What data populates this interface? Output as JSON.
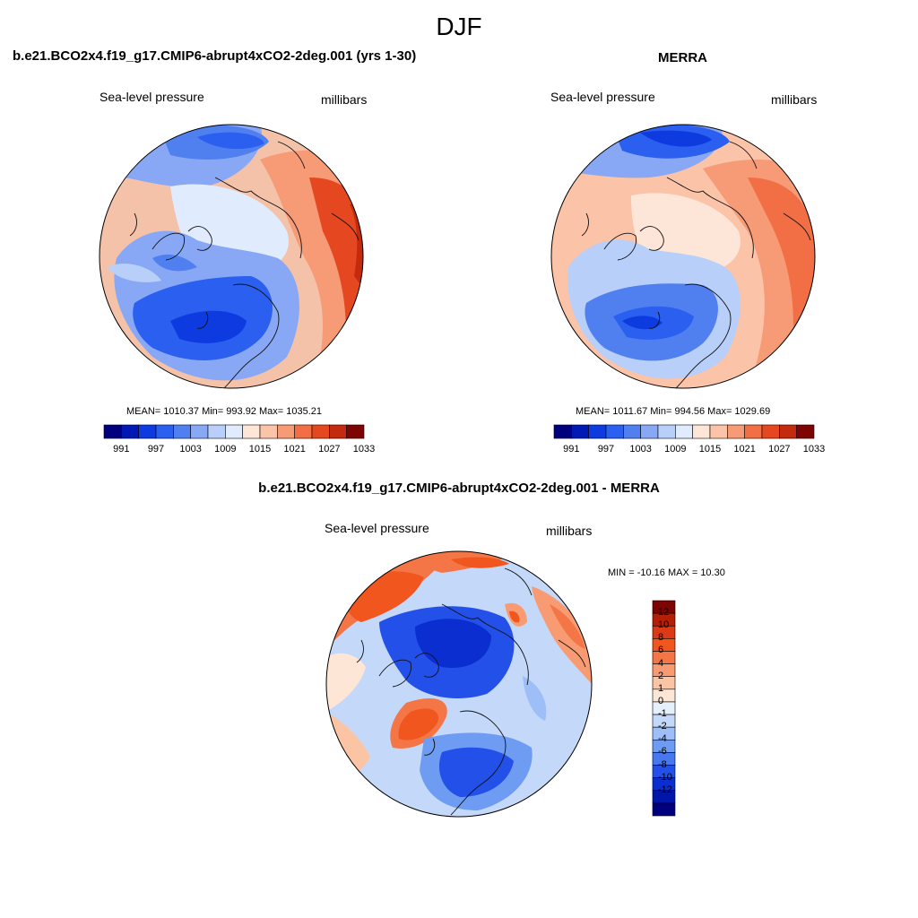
{
  "header": {
    "season": "DJF"
  },
  "panels": [
    {
      "title": "b.e21.BCO2x4.f19_g17.CMIP6-abrupt4xCO2-2deg.001 (yrs 1-30)",
      "variable": "Sea-level pressure",
      "units": "millibars",
      "stats": "MEAN= 1010.37  Min= 993.92  Max= 1035.21"
    },
    {
      "title": "MERRA",
      "variable": "Sea-level pressure",
      "units": "millibars",
      "stats": "MEAN= 1011.67  Min= 994.56  Max= 1029.69"
    },
    {
      "title": "b.e21.BCO2x4.f19_g17.CMIP6-abrupt4xCO2-2deg.001 - MERRA",
      "variable": "Sea-level pressure",
      "units": "millibars",
      "stats": "MIN = -10.16 MAX =  10.30"
    }
  ],
  "colorbars": {
    "slp": {
      "colors": [
        "#00007e",
        "#0019b4",
        "#0d3be0",
        "#2a5ff0",
        "#5080f0",
        "#88a8f5",
        "#b8cffa",
        "#e0ecfd",
        "#fde6d8",
        "#fbc3a8",
        "#f79a76",
        "#f26f46",
        "#e54720",
        "#c42a0e",
        "#7e0404"
      ],
      "tick_labels": [
        "991",
        "997",
        "1003",
        "1009",
        "1015",
        "1021",
        "1027",
        "1033"
      ]
    },
    "diff": {
      "colors": [
        "#7e0404",
        "#b42006",
        "#dc3a14",
        "#f0561e",
        "#f47646",
        "#f89a72",
        "#fbc4a4",
        "#fde6d6",
        "#e6f0fd",
        "#c4d8fa",
        "#9ebef7",
        "#6f9cf3",
        "#4878ef",
        "#2250e8",
        "#0a2ed0",
        "#0016a8",
        "#00007e"
      ],
      "tick_labels": [
        "12",
        "10",
        "8",
        "6",
        "4",
        "2",
        "1",
        "0",
        "-1",
        "-2",
        "-4",
        "-6",
        "-8",
        "-10",
        "-12"
      ]
    }
  }
}
